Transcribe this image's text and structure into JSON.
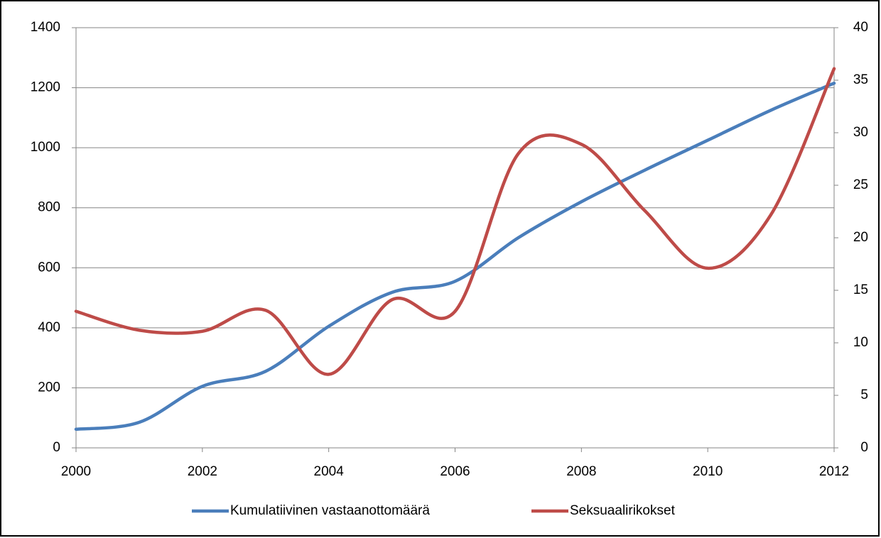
{
  "chart_data": {
    "type": "line",
    "x": [
      2000,
      2001,
      2002,
      2003,
      2004,
      2005,
      2006,
      2007,
      2008,
      2009,
      2010,
      2011,
      2012
    ],
    "series": [
      {
        "name": "Kumulatiivinen vastaanottomäärä",
        "color": "#4a7ebb",
        "values": [
          62,
          85,
          205,
          255,
          405,
          518,
          555,
          700,
          820,
          925,
          1025,
          1125,
          1215
        ]
      },
      {
        "name": "Seksuaalirikokset",
        "color": "#be4b48",
        "axis": "y2",
        "values": [
          13,
          11.2,
          11.1,
          13.1,
          7,
          14.1,
          13,
          28,
          28.9,
          22.6,
          17.1,
          22.2,
          36.1
        ]
      }
    ],
    "xlim": [
      2000,
      2012
    ],
    "xticks": [
      2000,
      2002,
      2004,
      2006,
      2008,
      2010,
      2012
    ],
    "ylim": [
      0,
      1400
    ],
    "yticks": [
      0,
      200,
      400,
      600,
      800,
      1000,
      1200,
      1400
    ],
    "y2lim": [
      0,
      40
    ],
    "y2ticks": [
      0,
      5,
      10,
      15,
      20,
      25,
      30,
      35,
      40
    ],
    "grid": true,
    "legend": "bottom"
  }
}
